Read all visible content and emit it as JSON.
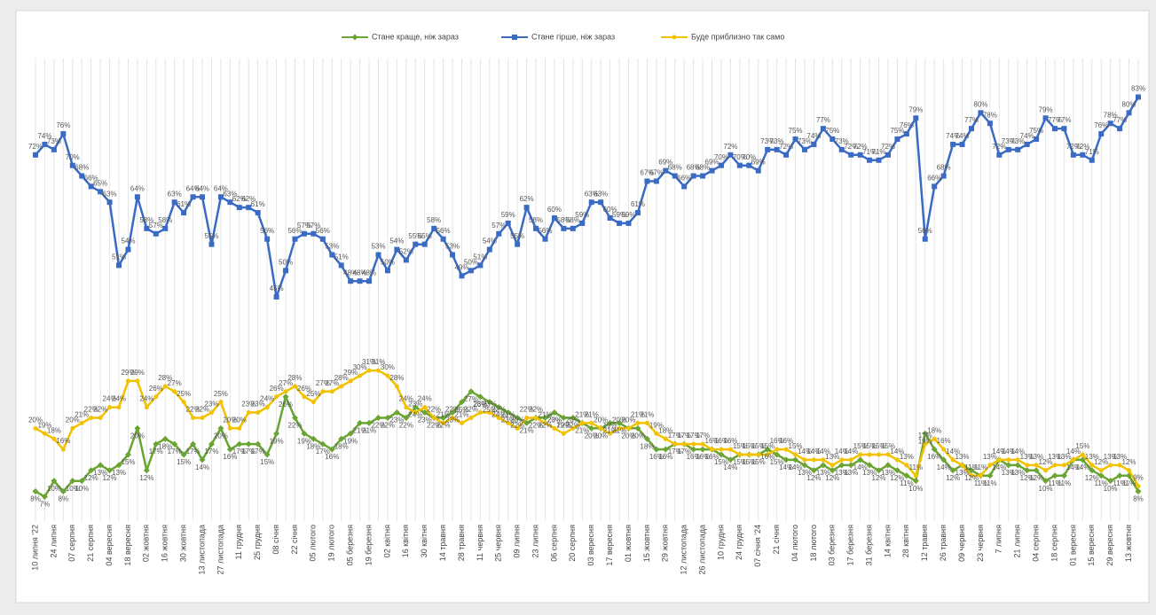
{
  "chart_data": {
    "type": "line",
    "legend": "top",
    "ylim": [
      0,
      90
    ],
    "categories": [
      "10 липня '22",
      null,
      "24 липня",
      null,
      "07 серпня",
      null,
      "21 серпня",
      null,
      "04 вересня",
      null,
      "18 вересня",
      null,
      "02 жовтня",
      null,
      "16 жовтня",
      null,
      "30 жовтня",
      null,
      "13 листопада",
      null,
      "27 листопада",
      null,
      "11 грудня",
      null,
      "25 грудня",
      null,
      "08 січня",
      null,
      "22 січня",
      null,
      "05 лютого",
      null,
      "19 лютого",
      null,
      "05 березня",
      null,
      "19 березня",
      null,
      "02 квітня",
      null,
      "16 квітня",
      null,
      "30 квітня",
      null,
      "14 травня",
      null,
      "28 травня",
      null,
      "11 червня",
      null,
      "25 червня",
      null,
      "09 липня",
      null,
      "23 липня",
      null,
      "06 серпня",
      null,
      "20 серпня",
      null,
      "03 вересня",
      null,
      "17 вересня",
      null,
      "01 жовтня",
      null,
      "15 жовтня",
      null,
      "29 жовтня",
      null,
      "12 листопада",
      null,
      "26 листопада",
      null,
      "10 грудня",
      null,
      "24 грудня",
      null,
      "07 січня '24",
      null,
      "21 січня",
      null,
      "04 лютого",
      null,
      "18 лютого",
      null,
      "03 березня",
      null,
      "17 березня",
      null,
      "31 березня",
      null,
      "14 квітня",
      null,
      "28 квітня",
      null,
      "12 травня",
      null,
      "26 травня",
      null,
      "09 червня",
      null,
      "23 червня",
      null,
      "7 липня",
      null,
      "21 липня",
      null,
      "04 серпня",
      null,
      "18 серпня",
      null,
      "01 вересня",
      null,
      "15 вересня",
      null,
      "29 вересня",
      null,
      "13 жовтня",
      null
    ],
    "series": [
      {
        "name": "Стане краще, ніж зараз",
        "color": "#6aa534",
        "marker": "diamond",
        "values": [
          8,
          7,
          10,
          8,
          10,
          10,
          12,
          13,
          12,
          13,
          15,
          20,
          12,
          17,
          18,
          17,
          15,
          17,
          14,
          17,
          20,
          16,
          17,
          17,
          17,
          15,
          19,
          26,
          22,
          19,
          18,
          17,
          16,
          18,
          19,
          21,
          21,
          22,
          22,
          23,
          22,
          24,
          23,
          22,
          22,
          23,
          25,
          27,
          26,
          25,
          24,
          23,
          22,
          21,
          22,
          22,
          23,
          22,
          22,
          21,
          20,
          20,
          21,
          21,
          20,
          20,
          18,
          16,
          16,
          17,
          17,
          16,
          16,
          16,
          15,
          14,
          15,
          15,
          15,
          16,
          15,
          14,
          14,
          13,
          12,
          13,
          12,
          13,
          13,
          14,
          13,
          12,
          13,
          12,
          11,
          10,
          19,
          16,
          14,
          12,
          13,
          12,
          11,
          11,
          14,
          13,
          13,
          12,
          12,
          10,
          11,
          11,
          14,
          14,
          12,
          11,
          10,
          11,
          11,
          8
        ],
        "value_labels": [
          "8%",
          "7%",
          "10%",
          "8%",
          "10%",
          "10%",
          "12%",
          "13%",
          "12%",
          "13%",
          "15%",
          "20%",
          "12%",
          "17%",
          "18%",
          "17%",
          "15%",
          "17%",
          "14%",
          "17%",
          "20%",
          "16%",
          "17%",
          "17%",
          "17%",
          "15%",
          "19%",
          "26%",
          "22%",
          "19%",
          "18%",
          "17%",
          "16%",
          "18%",
          "19%",
          "21%",
          "21%",
          "22%",
          "22%",
          "23%",
          "22%",
          "24%",
          "23%",
          "22%",
          "22%",
          "23%",
          "25%",
          "27%",
          "26%",
          "25%",
          "24%",
          "23%",
          "22%",
          "21%",
          "22%",
          "22%",
          "23%",
          "22%",
          "22%",
          "21%",
          "20%",
          "20%",
          "21%",
          "21%",
          "20%",
          "20%",
          "18%",
          "16%",
          "16%",
          "17%",
          "17%",
          "16%",
          "16%",
          "16%",
          "15%",
          "14%",
          "15%",
          "15%",
          "15%",
          "16%",
          "15%",
          "14%",
          "14%",
          "13%",
          "12%",
          "13%",
          "12%",
          "13%",
          "13%",
          "14%",
          "13%",
          "12%",
          "13%",
          "12%",
          "11%",
          "10%",
          "19%",
          "16%",
          "14%",
          "12%",
          "13%",
          "12%",
          "11%",
          "11%",
          "14%",
          "13%",
          "13%",
          "12%",
          "12%",
          "10%",
          "11%",
          "11%",
          "14%",
          "14%",
          "12%",
          "11%",
          "10%",
          "11%",
          "11%",
          "8%"
        ]
      },
      {
        "name": "Стане гірше, ніж зараз",
        "color": "#3a6bc4",
        "marker": "square",
        "values": [
          72,
          74,
          73,
          76,
          70,
          68,
          66,
          65,
          63,
          51,
          54,
          64,
          58,
          57,
          58,
          63,
          61,
          64,
          64,
          55,
          64,
          63,
          62,
          62,
          61,
          56,
          45,
          50,
          56,
          57,
          57,
          56,
          53,
          51,
          48,
          48,
          48,
          53,
          50,
          54,
          52,
          55,
          55,
          58,
          56,
          53,
          49,
          50,
          51,
          54,
          57,
          59,
          55,
          62,
          58,
          56,
          60,
          58,
          58,
          59,
          63,
          63,
          60,
          59,
          59,
          61,
          67,
          67,
          69,
          68,
          66,
          68,
          68,
          69,
          70,
          72,
          70,
          70,
          69,
          73,
          73,
          72,
          75,
          73,
          74,
          77,
          75,
          73,
          72,
          72,
          71,
          71,
          72,
          75,
          76,
          79,
          56,
          66,
          68,
          74,
          74,
          77,
          80,
          78,
          72,
          73,
          73,
          74,
          75,
          79,
          77,
          77,
          72,
          72,
          71,
          76,
          78,
          77,
          80,
          83
        ],
        "value_labels": [
          "72%",
          "74%",
          "73%",
          "76%",
          "70%",
          "68%",
          "66%",
          "65%",
          "63%",
          "51%",
          "54%",
          "64%",
          "58%",
          "57%",
          "58%",
          "63%",
          "61%",
          "64%",
          "64%",
          "55%",
          "64%",
          "63%",
          "62%",
          "62%",
          "61%",
          "56%",
          "45%",
          "50%",
          "56%",
          "57%",
          "57%",
          "56%",
          "53%",
          "51%",
          "48%",
          "48%",
          "48%",
          "53%",
          "50%",
          "54%",
          "52%",
          "55%",
          "55%",
          "58%",
          "56%",
          "53%",
          "49%",
          "50%",
          "51%",
          "54%",
          "57%",
          "59%",
          "55%",
          "62%",
          "58%",
          "56%",
          "60%",
          "58%",
          "58%",
          "59%",
          "63%",
          "63%",
          "60%",
          "59%",
          "59%",
          "61%",
          "67%",
          "67%",
          "69%",
          "68%",
          "66%",
          "68%",
          "68%",
          "69%",
          "70%",
          "72%",
          "70%",
          "70%",
          "69%",
          "73%",
          "73%",
          "72%",
          "75%",
          "73%",
          "74%",
          "77%",
          "75%",
          "73%",
          "72%",
          "72%",
          "71%",
          "71%",
          "72%",
          "75%",
          "76%",
          "79%",
          "56%",
          "66%",
          "68%",
          "74%",
          "74%",
          "77%",
          "80%",
          "78%",
          "72%",
          "73%",
          "73%",
          "74%",
          "75%",
          "79%",
          "77%",
          "77%",
          "72%",
          "72%",
          "71%",
          "76%",
          "78%",
          "77%",
          "80%",
          "83%"
        ]
      },
      {
        "name": "Буде приблизно так само",
        "color": "#f2c100",
        "marker": "circle",
        "values": [
          20,
          19,
          18,
          16,
          20,
          21,
          22,
          22,
          24,
          24,
          29,
          29,
          24,
          26,
          28,
          27,
          25,
          22,
          22,
          23,
          25,
          20,
          20,
          23,
          23,
          24,
          26,
          27,
          28,
          26,
          25,
          27,
          27,
          28,
          29,
          30,
          31,
          31,
          30,
          28,
          24,
          23,
          24,
          22,
          21,
          22,
          21,
          22,
          23,
          23,
          22,
          21,
          20,
          22,
          22,
          21,
          20,
          19,
          20,
          21,
          21,
          20,
          19,
          20,
          20,
          21,
          21,
          19,
          18,
          17,
          17,
          17,
          17,
          16,
          16,
          16,
          15,
          15,
          15,
          15,
          16,
          16,
          15,
          14,
          14,
          14,
          13,
          14,
          14,
          15,
          15,
          15,
          15,
          14,
          13,
          11,
          17,
          18,
          16,
          14,
          13,
          11,
          11,
          13,
          14,
          14,
          14,
          13,
          13,
          12,
          13,
          13,
          14,
          15,
          13,
          12,
          13,
          13,
          12,
          9
        ],
        "value_labels": [
          "20%",
          "19%",
          "18%",
          "16%",
          "20%",
          "21%",
          "22%",
          "22%",
          "24%",
          "24%",
          "29%",
          "29%",
          "24%",
          "26%",
          "28%",
          "27%",
          "25%",
          "22%",
          "22%",
          "23%",
          "25%",
          "20%",
          "20%",
          "23%",
          "23%",
          "24%",
          "26%",
          "27%",
          "28%",
          "26%",
          "25%",
          "27%",
          "27%",
          "28%",
          "29%",
          "30%",
          "31%",
          "31%",
          "30%",
          "28%",
          "24%",
          "23%",
          "24%",
          "22%",
          "21%",
          "22%",
          "21%",
          "22%",
          "23%",
          "23%",
          "22%",
          "21%",
          "20%",
          "22%",
          "22%",
          "21%",
          "20%",
          "19%",
          "20%",
          "21%",
          "21%",
          "20%",
          "19%",
          "20%",
          "20%",
          "21%",
          "21%",
          "19%",
          "18%",
          "17%",
          "17%",
          "17%",
          "17%",
          "16%",
          "16%",
          "16%",
          "15%",
          "15%",
          "15%",
          "15%",
          "16%",
          "16%",
          "15%",
          "14%",
          "14%",
          "14%",
          "13%",
          "14%",
          "14%",
          "15%",
          "15%",
          "15%",
          "15%",
          "14%",
          "13%",
          "11%",
          "17%",
          "18%",
          "16%",
          "14%",
          "13%",
          "11%",
          "11%",
          "13%",
          "14%",
          "14%",
          "14%",
          "13%",
          "13%",
          "12%",
          "13%",
          "13%",
          "14%",
          "15%",
          "13%",
          "12%",
          "13%",
          "13%",
          "12%",
          "9%"
        ]
      }
    ]
  }
}
